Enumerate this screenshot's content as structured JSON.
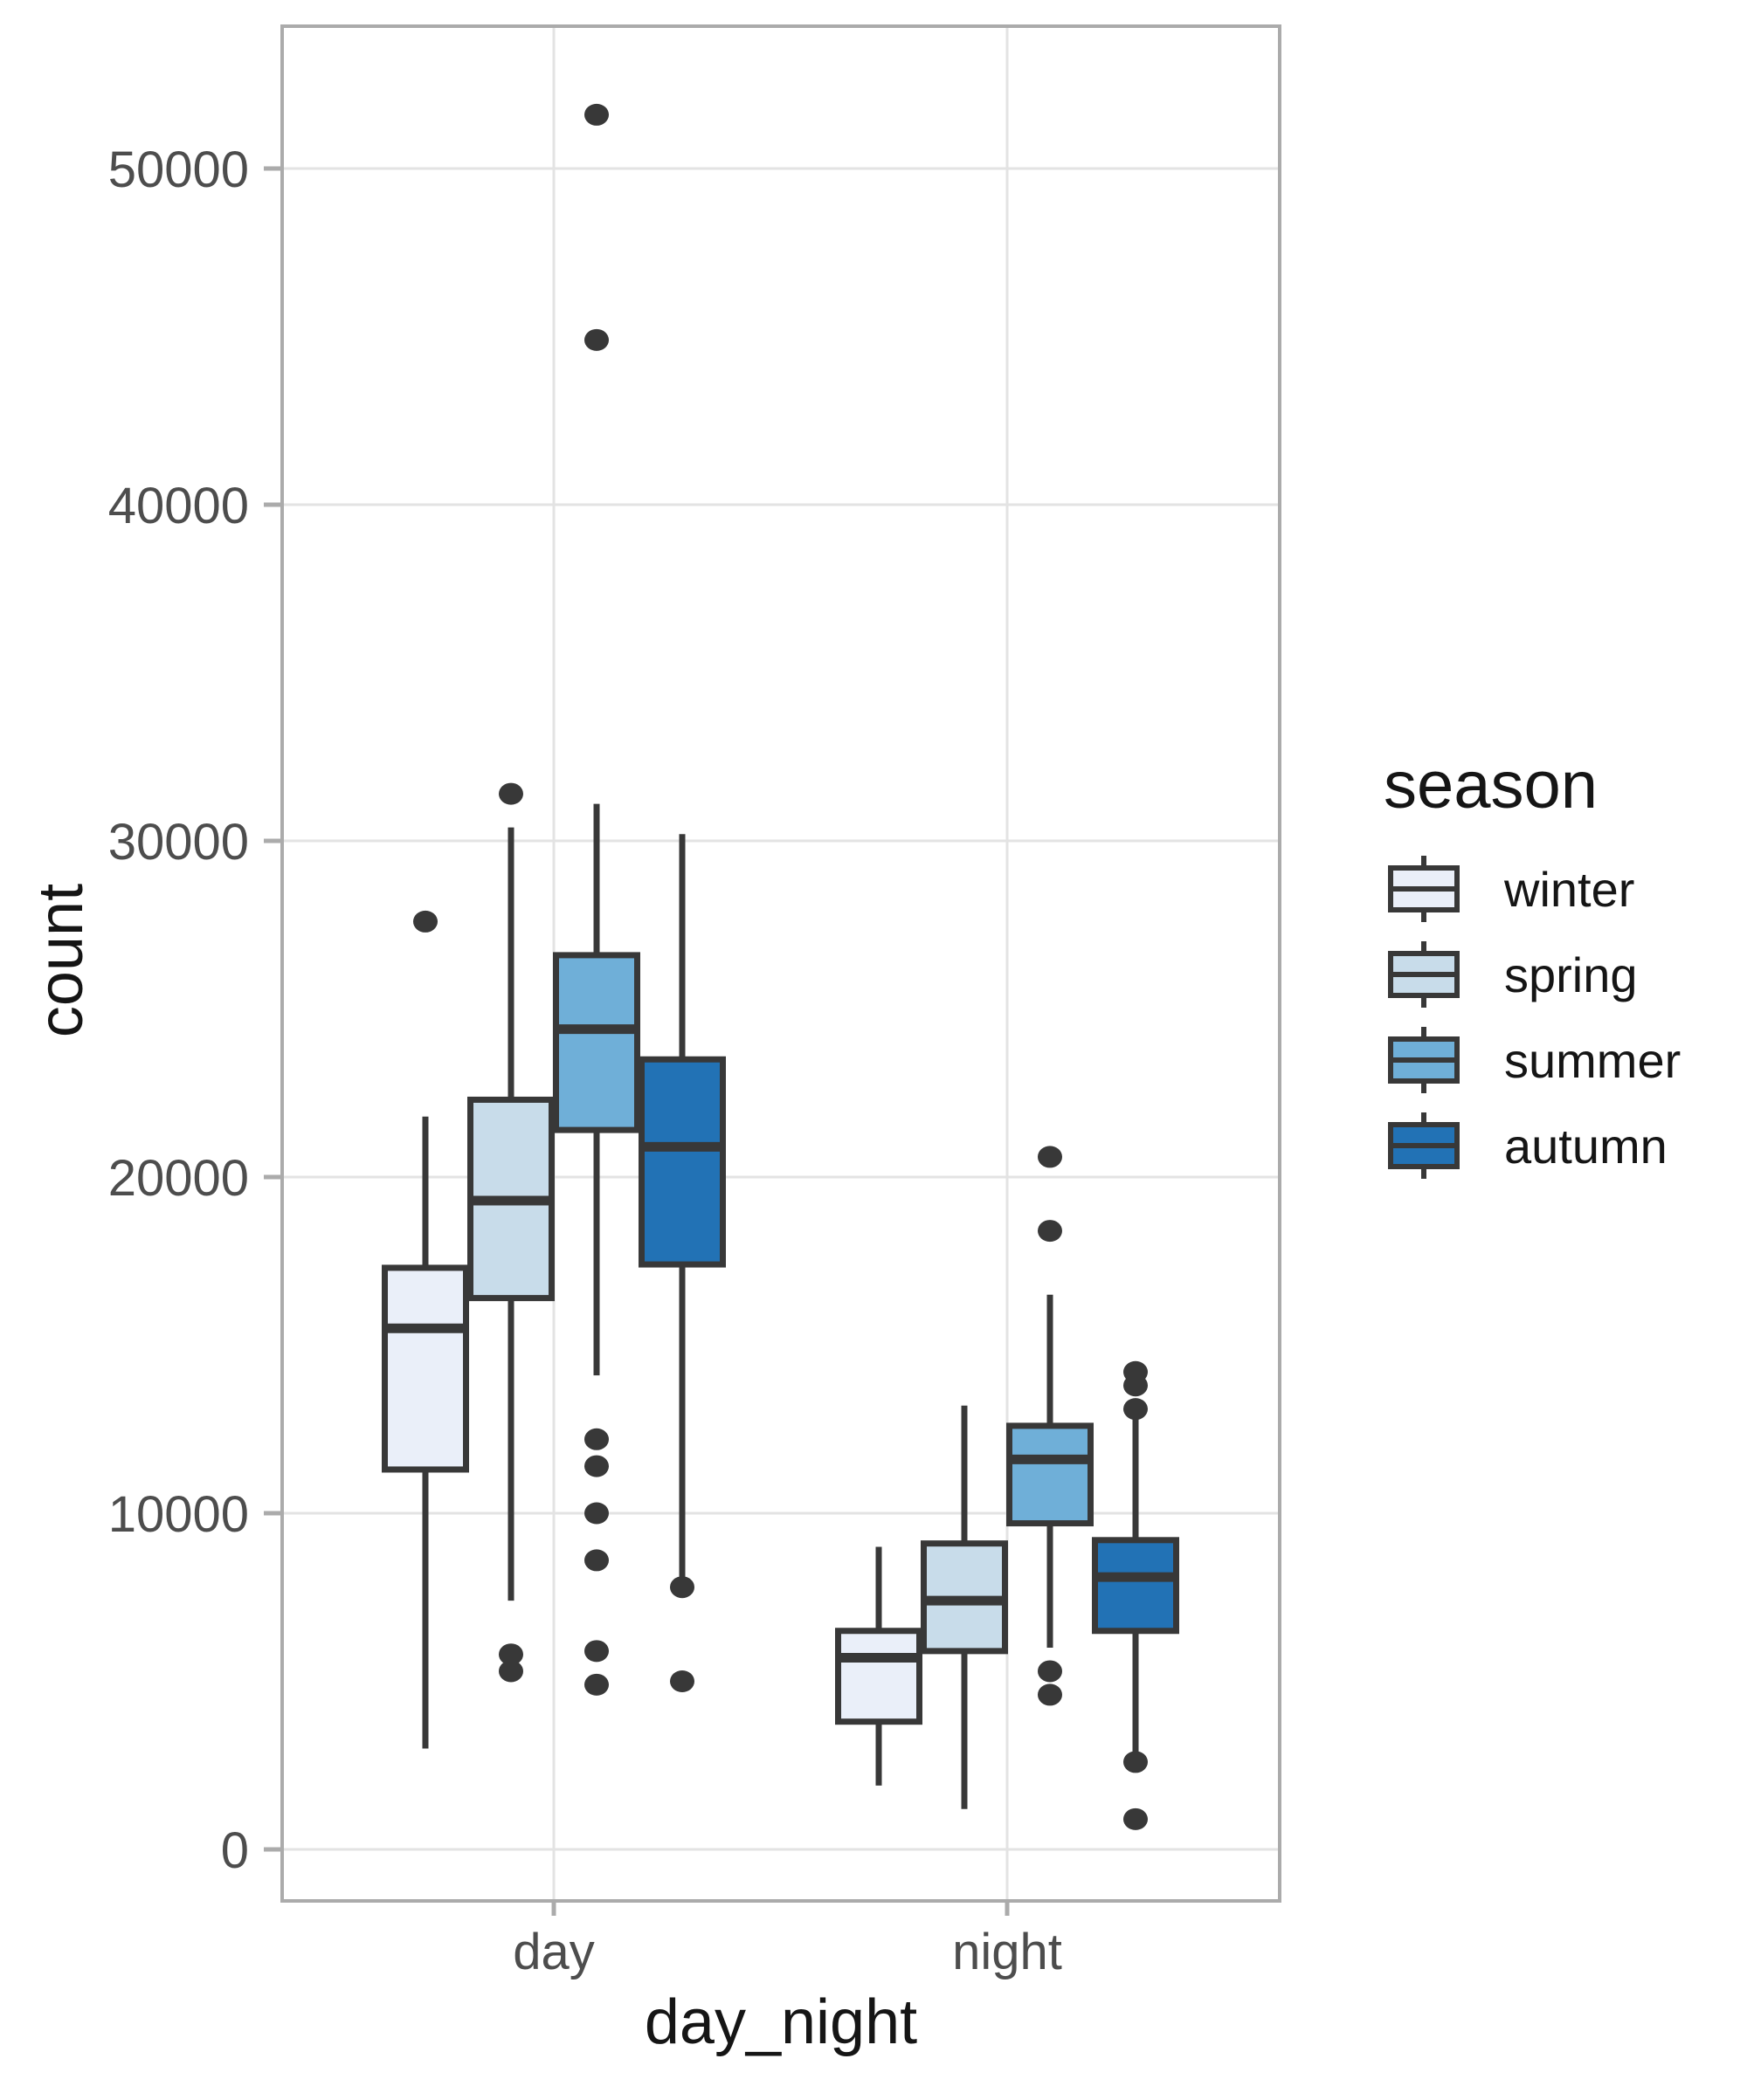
{
  "chart_data": {
    "type": "boxplot",
    "title": "",
    "xlabel": "day_night",
    "ylabel": "count",
    "categories": [
      "day",
      "night"
    ],
    "y_ticks": [
      0,
      10000,
      20000,
      30000,
      40000,
      50000
    ],
    "y_tick_labels": [
      "0",
      "10000",
      "20000",
      "30000",
      "40000",
      "50000"
    ],
    "ylim": [
      -1500,
      53200
    ],
    "grid": true,
    "legend": {
      "title": "season",
      "position": "right",
      "entries": [
        "winter",
        "spring",
        "summer",
        "autumn"
      ]
    },
    "series": [
      {
        "name": "winter",
        "fill": "#EAEFF9",
        "boxes": [
          {
            "category": "day",
            "whisker_low": 3000,
            "q1": 11300,
            "median": 15500,
            "q3": 17300,
            "whisker_high": 21800,
            "outliers": [
              27600
            ]
          },
          {
            "category": "night",
            "whisker_low": 1900,
            "q1": 3800,
            "median": 5700,
            "q3": 6500,
            "whisker_high": 9000,
            "outliers": []
          }
        ]
      },
      {
        "name": "spring",
        "fill": "#C8DCEA",
        "boxes": [
          {
            "category": "day",
            "whisker_low": 7400,
            "q1": 16400,
            "median": 19300,
            "q3": 22300,
            "whisker_high": 30400,
            "outliers": [
              31400,
              5800,
              5300
            ]
          },
          {
            "category": "night",
            "whisker_low": 1200,
            "q1": 5900,
            "median": 7400,
            "q3": 9100,
            "whisker_high": 13200,
            "outliers": []
          }
        ]
      },
      {
        "name": "summer",
        "fill": "#6FAFD8",
        "boxes": [
          {
            "category": "day",
            "whisker_low": 14100,
            "q1": 21400,
            "median": 24400,
            "q3": 26600,
            "whisker_high": 31100,
            "outliers": [
              51600,
              44900,
              12200,
              11400,
              10000,
              8600,
              5900,
              4900
            ]
          },
          {
            "category": "night",
            "whisker_low": 6000,
            "q1": 9700,
            "median": 11600,
            "q3": 12600,
            "whisker_high": 16500,
            "outliers": [
              20600,
              18400,
              5300,
              4600
            ]
          }
        ]
      },
      {
        "name": "autumn",
        "fill": "#2272B5",
        "boxes": [
          {
            "category": "day",
            "whisker_low": 7900,
            "q1": 17400,
            "median": 20900,
            "q3": 23500,
            "whisker_high": 30200,
            "outliers": [
              7800,
              5000
            ]
          },
          {
            "category": "night",
            "whisker_low": 2700,
            "q1": 6500,
            "median": 8100,
            "q3": 9200,
            "whisker_high": 12800,
            "outliers": [
              14200,
              13800,
              13100,
              2600,
              900
            ]
          }
        ]
      }
    ]
  },
  "style": {
    "background": "#FFFFFF",
    "panel_border": "#ABABAB",
    "gridline": "#E3E3E3",
    "tick_mark": "#ABABAB",
    "tick_label_color": "#4D4D4D",
    "axis_title_color": "#151515",
    "legend_text_color": "#151515",
    "box_stroke": "#383838",
    "outlier_fill": "#383838"
  }
}
